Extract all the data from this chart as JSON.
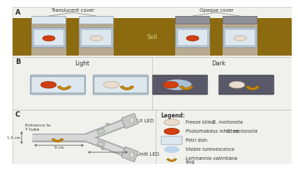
{
  "bg_color": "#f0f0ec",
  "soil_color": "#8B6A10",
  "panel_border": "#bbbbbb",
  "petri_fill_light": "#dde8ee",
  "petri_fill_dark": "#585868",
  "petri_border_light": "#9aabb8",
  "petri_border_dark": "#70707a",
  "cover_translucent_fill": "#dde8ee",
  "cover_translucent_border": "#9aabb8",
  "cover_opaque_fill": "#909098",
  "cover_opaque_border": "#707078",
  "infected_fill": "#d04010",
  "infected_border": "#a02800",
  "freeze_fill": "#e8ddd0",
  "freeze_border": "#b8a888",
  "slug_fill": "#c8880a",
  "slug_border": "#9a6600",
  "glow_fill": "#b8d4ec",
  "led_fill": "#c8c8c8",
  "led_border": "#888888",
  "ytube_fill": "#d8d8d8",
  "ytube_border": "#aaaaaa",
  "tape_fill": "#c8ccc8",
  "tape_border": "#8a8e8a",
  "text_color": "#333333",
  "title_A": "A",
  "title_B": "B",
  "title_C": "C",
  "label_translucent": "Translucent cover",
  "label_opaque": "Opaque cover",
  "label_soil": "Soil",
  "label_light": "Light",
  "label_dark": "Dark",
  "label_lit_led": "Lit LED",
  "label_unlit_led": "Unlit LED",
  "label_entrance": "Entrance to\nY tube",
  "label_opaque_tape": "Opaque\ntape",
  "label_1_5cm": "1.5 cm",
  "label_9cm": "9 cm",
  "label_9_5cm": "9.5 cm",
  "legend_title": "Legend:",
  "leg1": "Freeze killed G. mellonella",
  "leg2": "Photorhabdus infected G. mellonella",
  "leg3": "Petri dish",
  "leg4": "Visible luminescence",
  "leg5": "Lehmannia valentiana slug"
}
